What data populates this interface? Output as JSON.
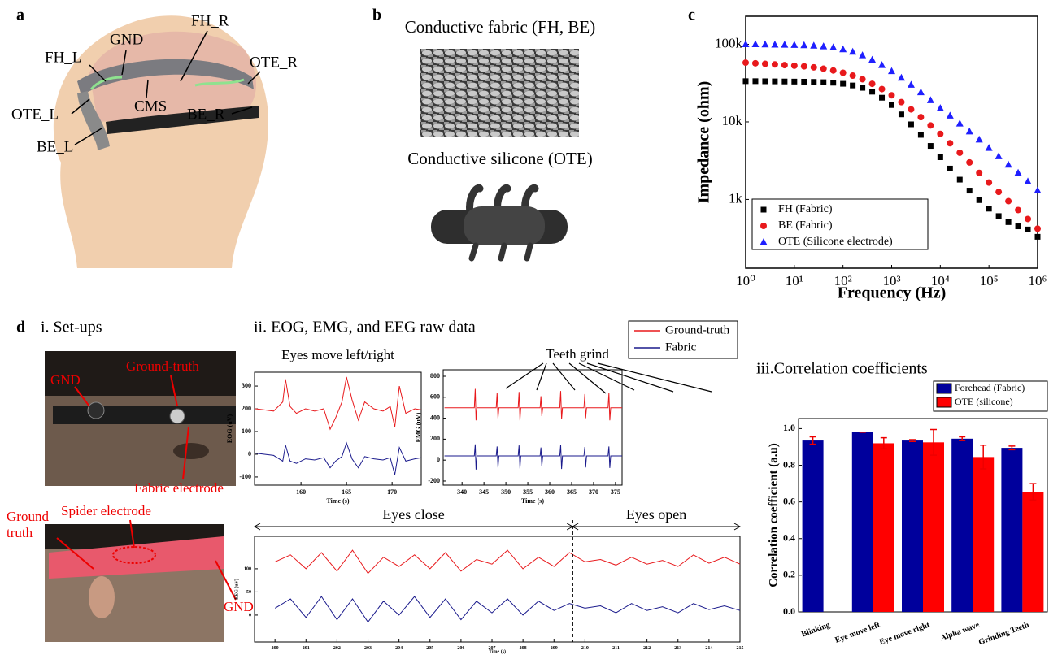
{
  "panel_labels": [
    "a",
    "b",
    "c",
    "d"
  ],
  "panel_a": {
    "labels": [
      "GND",
      "FH_L",
      "FH_R",
      "OTE_R",
      "CMS",
      "OTE_L",
      "BE_R",
      "BE_L"
    ]
  },
  "panel_b": {
    "fabric_title": "Conductive fabric (FH, BE)",
    "silicone_title": "Conductive silicone (OTE)"
  },
  "panel_d": {
    "setups_title": "i. Set-ups",
    "raw_title": "ii. EOG, EMG, and EEG raw data",
    "corr_title": "iii.Correlation coefficients",
    "photo_top_labels": [
      "GND",
      "Ground-truth",
      "Fabric electrode"
    ],
    "photo_bottom_labels": {
      "ground_truth": [
        "Ground",
        "truth"
      ],
      "spider": "Spider electrode",
      "gnd": "GND"
    }
  },
  "chart_data": [
    {
      "type": "scatter",
      "xlabel": "Frequency (Hz)",
      "ylabel": "Impedance (ohm)",
      "xscale": "log",
      "yscale": "log",
      "xlim": [
        1,
        1000000
      ],
      "ylim": [
        130,
        230000
      ],
      "xticks": [
        {
          "value": 1,
          "label": "10⁰"
        },
        {
          "value": 10,
          "label": "10¹"
        },
        {
          "value": 100,
          "label": "10²"
        },
        {
          "value": 1000,
          "label": "10³"
        },
        {
          "value": 10000,
          "label": "10⁴"
        },
        {
          "value": 100000,
          "label": "10⁵"
        },
        {
          "value": 1000000,
          "label": "10⁶"
        }
      ],
      "yticks": [
        {
          "value": 1000,
          "label": "1k"
        },
        {
          "value": 10000,
          "label": "10k"
        },
        {
          "value": 100000,
          "label": "100k"
        }
      ],
      "legend": "lower left",
      "x": [
        1,
        1.585,
        2.512,
        3.981,
        6.31,
        10,
        15.85,
        25.12,
        39.81,
        63.1,
        100,
        158.5,
        251.2,
        398.1,
        631,
        1000,
        1585,
        2512,
        3981,
        6310,
        10000,
        15850,
        25120,
        39810,
        63100,
        100000,
        158500,
        251200,
        398100,
        631000,
        1000000
      ],
      "series": [
        {
          "name": "FH (Fabric)",
          "color": "#000000",
          "marker": "square",
          "values": [
            33500,
            33500,
            33400,
            33300,
            33200,
            33100,
            33000,
            32800,
            32500,
            32000,
            31000,
            29500,
            27500,
            24500,
            20500,
            16500,
            12500,
            9300,
            6800,
            4900,
            3500,
            2500,
            1800,
            1300,
            980,
            760,
            610,
            510,
            450,
            410,
            330
          ]
        },
        {
          "name": "BE (Fabric)",
          "color": "#e8191c",
          "marker": "circle",
          "values": [
            58000,
            57000,
            56000,
            55000,
            54000,
            53000,
            52000,
            50500,
            48500,
            46000,
            43000,
            39500,
            35500,
            31000,
            26500,
            22000,
            18000,
            14500,
            11500,
            9000,
            7000,
            5300,
            4000,
            3000,
            2200,
            1650,
            1250,
            950,
            730,
            560,
            420
          ]
        },
        {
          "name": "OTE (Silicone electrode)",
          "color": "#1f1fff",
          "marker": "triangle",
          "values": [
            100000,
            100000,
            99500,
            99000,
            98500,
            98000,
            97000,
            96000,
            94000,
            91000,
            86000,
            80000,
            72000,
            63000,
            54000,
            45000,
            37000,
            30000,
            24000,
            19000,
            15000,
            12000,
            9500,
            7500,
            5900,
            4600,
            3600,
            2800,
            2200,
            1700,
            1300
          ]
        }
      ]
    },
    {
      "type": "line",
      "title": "Eyes move left/right",
      "xlabel": "Time (s)",
      "ylabel": "EOG (uV)",
      "xlim": [
        154.9,
        173.2
      ],
      "ylim": [
        -136,
        361
      ],
      "xticks": [
        160,
        165,
        170
      ],
      "yticks": [
        -100,
        0,
        100,
        200,
        300
      ],
      "legend": "upper right",
      "x": [
        155,
        156,
        157,
        158,
        158.3,
        158.8,
        159.5,
        160.5,
        161.5,
        162.5,
        163.2,
        163.8,
        164.5,
        165,
        165.6,
        166.3,
        167,
        168,
        169,
        169.8,
        170.3,
        170.8,
        171.5,
        172.5,
        173.2
      ],
      "series": [
        {
          "name": "Ground-truth",
          "color": "#e8191c",
          "values": [
            200,
            195,
            190,
            230,
            330,
            210,
            180,
            200,
            190,
            200,
            110,
            160,
            230,
            340,
            240,
            150,
            230,
            200,
            190,
            210,
            120,
            300,
            180,
            200,
            195
          ]
        },
        {
          "name": "Fabric",
          "color": "#1a1a8c",
          "values": [
            5,
            0,
            -5,
            -30,
            40,
            -30,
            -40,
            -20,
            -25,
            -15,
            -60,
            -30,
            -10,
            50,
            -20,
            -60,
            -10,
            -20,
            -25,
            -15,
            -90,
            30,
            -30,
            -20,
            -15
          ]
        }
      ]
    },
    {
      "type": "line",
      "annotation": "Teeth grind",
      "xlabel": "Time (s)",
      "ylabel": "EMG (uV)",
      "xlim": [
        335.7,
        376.5
      ],
      "ylim": [
        -239,
        862
      ],
      "xticks": [
        340,
        345,
        350,
        355,
        360,
        365,
        370,
        375
      ],
      "yticks": [
        -200,
        0,
        200,
        400,
        600,
        800
      ],
      "x": [
        336,
        342.8,
        343,
        343.2,
        343.4,
        347.8,
        348,
        348.2,
        348.4,
        352.8,
        353,
        353.2,
        353.4,
        357.8,
        358,
        358.2,
        358.4,
        362.3,
        362.5,
        362.7,
        362.9,
        367.8,
        368,
        368.2,
        368.4,
        373.3,
        373.5,
        373.7,
        373.9,
        376.5
      ],
      "series": [
        {
          "color": "#e8191c",
          "values": [
            500,
            500,
            680,
            380,
            500,
            500,
            640,
            400,
            500,
            500,
            650,
            380,
            500,
            500,
            610,
            420,
            500,
            500,
            660,
            390,
            500,
            500,
            630,
            400,
            500,
            500,
            640,
            380,
            500,
            500
          ]
        },
        {
          "color": "#1a1a8c",
          "values": [
            40,
            40,
            150,
            -90,
            40,
            40,
            130,
            -70,
            40,
            40,
            140,
            -80,
            40,
            40,
            120,
            -60,
            40,
            40,
            145,
            -85,
            40,
            40,
            125,
            -70,
            40,
            40,
            130,
            -75,
            40,
            40
          ]
        }
      ]
    },
    {
      "type": "line",
      "annotations": [
        "Eyes close",
        "Eyes open"
      ],
      "divider_x": 209.6,
      "xlabel": "Time (s)",
      "ylabel": "EEG (uV)",
      "xlim": [
        199.34,
        215
      ],
      "ylim": [
        -58,
        170
      ],
      "xticks": [
        200,
        201,
        202,
        203,
        204,
        205,
        206,
        207,
        208,
        209,
        210,
        211,
        212,
        213,
        214,
        215
      ],
      "yticks": [
        0,
        50,
        100
      ],
      "x": [
        200,
        200.5,
        201,
        201.5,
        202,
        202.5,
        203,
        203.5,
        204,
        204.5,
        205,
        205.5,
        206,
        206.5,
        207,
        207.5,
        208,
        208.5,
        209,
        209.5,
        210,
        210.5,
        211,
        211.5,
        212,
        212.5,
        213,
        213.5,
        214,
        214.5,
        215
      ],
      "series": [
        {
          "color": "#e8191c",
          "values": [
            115,
            130,
            100,
            135,
            95,
            140,
            90,
            125,
            105,
            130,
            100,
            135,
            95,
            120,
            110,
            140,
            100,
            125,
            105,
            135,
            115,
            120,
            108,
            125,
            110,
            118,
            105,
            130,
            112,
            125,
            110
          ]
        },
        {
          "color": "#1a1a8c",
          "values": [
            15,
            35,
            -5,
            40,
            -10,
            35,
            -15,
            30,
            0,
            40,
            -5,
            35,
            -10,
            30,
            5,
            35,
            0,
            30,
            10,
            25,
            15,
            20,
            5,
            25,
            10,
            18,
            5,
            25,
            12,
            20,
            10
          ]
        }
      ]
    },
    {
      "type": "bar",
      "ylabel": "Correlation coefficient (a.u)",
      "ylim": [
        0,
        1.055
      ],
      "yticks": [
        {
          "value": 0,
          "label": "0.0"
        },
        0.2,
        0.4,
        0.6,
        0.8,
        {
          "value": 1,
          "label": "1.0"
        }
      ],
      "legend": "upper right",
      "categories": [
        "Blinking",
        "Eye move left",
        "Eye move right",
        "Alpha wave",
        "Grinding Teeth"
      ],
      "series": [
        {
          "name": "Forehead (Fabric)",
          "color": "#00009c",
          "values": [
            0.935,
            0.98,
            0.935,
            0.945,
            0.895
          ],
          "errors": [
            0.02,
            0,
            0.005,
            0.01,
            0.01
          ]
        },
        {
          "name": "OTE (silicone)",
          "color": "#ff0000",
          "values": [
            null,
            0.92,
            0.925,
            0.845,
            0.655
          ],
          "errors": [
            null,
            0.03,
            0.07,
            0.065,
            0.045
          ]
        }
      ]
    }
  ]
}
